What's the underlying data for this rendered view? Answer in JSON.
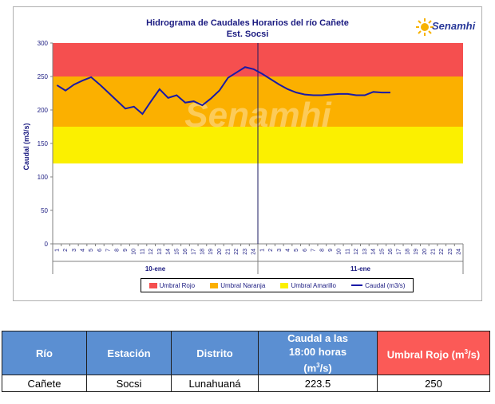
{
  "chart_data": {
    "type": "line",
    "title": "Hidrograma de Caudales Horarios del río Cañete",
    "subtitle": "Est. Socsi",
    "ylabel": "Caudal  (m3/s)",
    "ylim": [
      0,
      300
    ],
    "yticks": [
      "0",
      "50",
      "100",
      "150",
      "200",
      "250",
      "300"
    ],
    "xticks": [
      "1",
      "2",
      "3",
      "4",
      "5",
      "6",
      "7",
      "8",
      "9",
      "10",
      "11",
      "12",
      "13",
      "14",
      "15",
      "16",
      "17",
      "18",
      "19",
      "20",
      "21",
      "22",
      "23",
      "24",
      "1",
      "2",
      "3",
      "4",
      "5",
      "6",
      "7",
      "8",
      "9",
      "10",
      "11",
      "12",
      "13",
      "14",
      "15",
      "16",
      "17",
      "18",
      "19",
      "20",
      "21",
      "22",
      "23",
      "24"
    ],
    "day_labels": [
      "10-ene",
      "11-ene"
    ],
    "bands": [
      {
        "name": "Umbral Rojo",
        "from": 250,
        "to": 300,
        "color": "#f54f4f"
      },
      {
        "name": "Umbral Naranja",
        "from": 175,
        "to": 250,
        "color": "#fbb000"
      },
      {
        "name": "Umbral Amarillo",
        "from": 120,
        "to": 175,
        "color": "#fbf000"
      }
    ],
    "series": [
      {
        "name": "Caudal (m3/s)",
        "color": "#1a1aa6",
        "values": [
          237,
          229,
          238,
          244,
          249,
          238,
          226,
          214,
          202,
          205,
          194,
          213,
          231,
          218,
          222,
          211,
          213,
          207,
          217,
          229,
          248,
          256,
          264,
          261,
          254,
          246,
          238,
          231,
          226,
          223,
          222,
          222,
          223,
          224,
          224,
          222,
          222,
          227,
          226,
          226
        ]
      }
    ],
    "legend_position": "bottom",
    "grid": false
  },
  "watermark": "Senamhi",
  "logo": {
    "text": "Senamhi"
  },
  "table": {
    "headers": [
      "Río",
      "Estación",
      "Distrito",
      "Caudal a las 18:00 horas (m³/s)",
      "Umbral Rojo (m³/s)"
    ],
    "header_caudal": {
      "line1": "Caudal a las",
      "line2": "18:00 horas",
      "line3": "(m",
      "sup": "3",
      "line3_end": "/s)"
    },
    "header_umbral": {
      "main": "Umbral Rojo (m",
      "sup": "3",
      "end": "/s)"
    },
    "row": [
      "Cañete",
      "Socsi",
      "Lunahuaná",
      "223.5",
      "250"
    ]
  }
}
